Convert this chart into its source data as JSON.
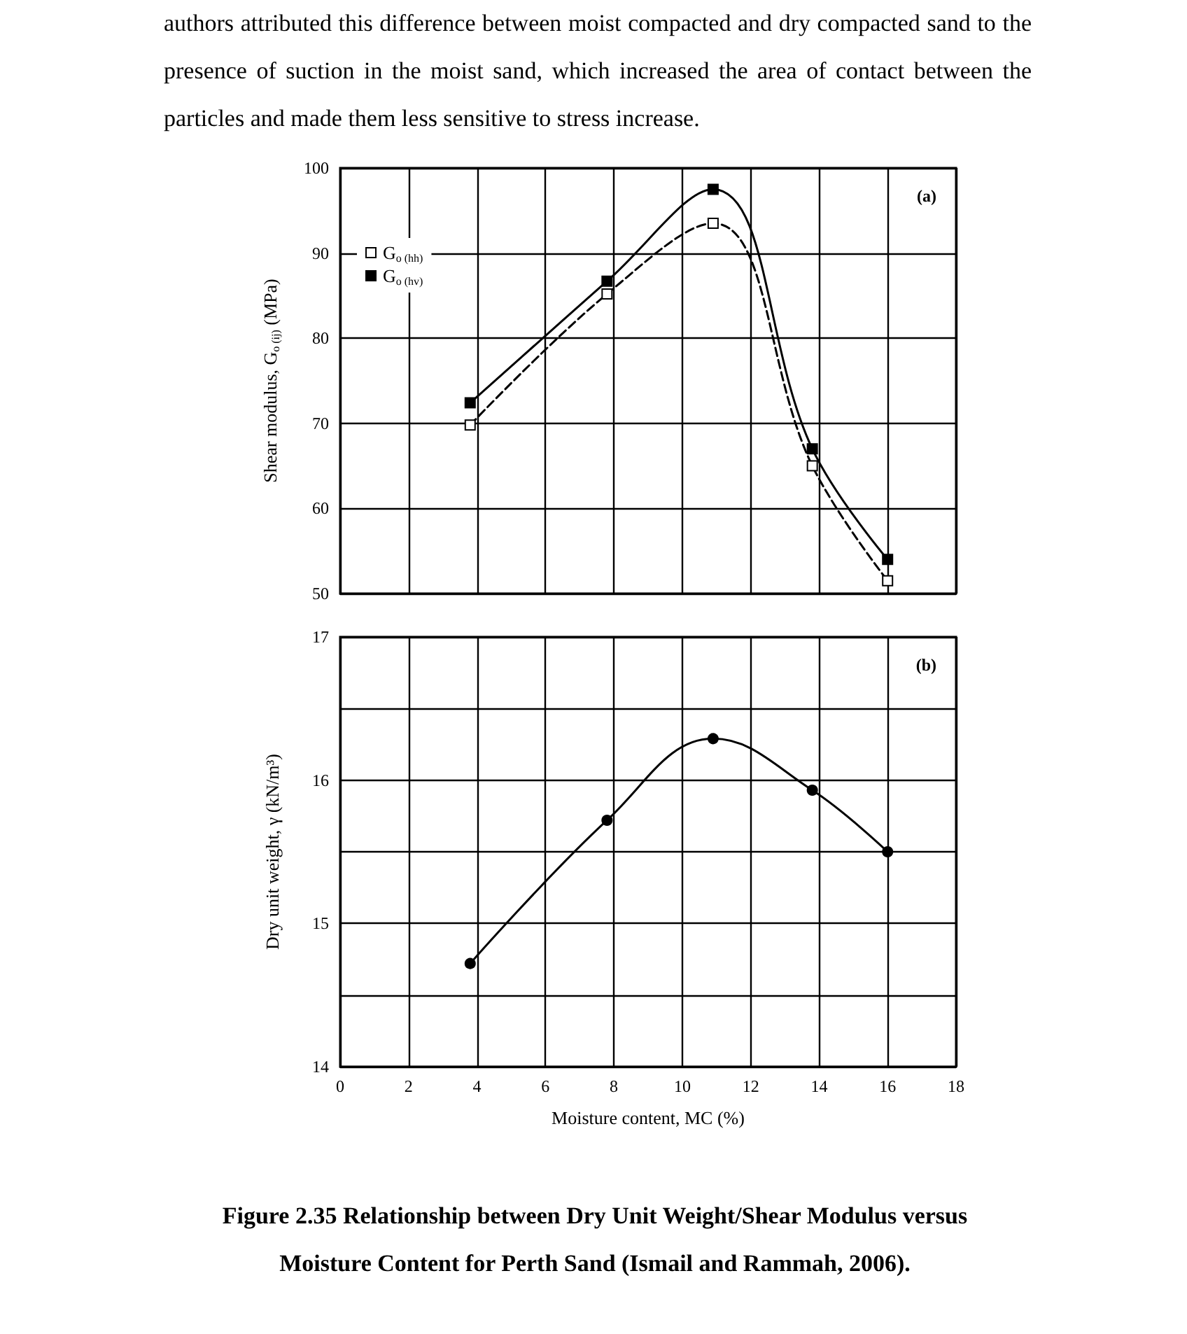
{
  "chart_data": [
    {
      "type": "line",
      "ylabel": "Shear modulus, G$_{o (ij)}$ (MPa)",
      "annotations": [
        "(a)",
        "authors attributed this difference between moist compacted and dry compacted sand to the presence of suction in the moist sand, which increased the area of contact between the particles and made them less sensitive to stress increase."
      ],
      "x": [
        3.8,
        7.8,
        10.9,
        13.8,
        16.0
      ],
      "series": [
        {
          "name": "G$_{o (hh)}$",
          "color": "#000000",
          "values": [
            69.8,
            85.2,
            93.5,
            65,
            51.5
          ],
          "line_style": "dashed"
        },
        {
          "name": "G$_{o (hv)}$",
          "color": "#000000",
          "values": [
            72.4,
            86.7,
            97.5,
            67,
            54
          ],
          "line_style": "solid"
        }
      ],
      "xlim": [
        0,
        18
      ],
      "xticks": [
        0,
        2,
        4,
        6,
        8,
        10,
        12,
        14,
        16,
        18
      ],
      "ylim": [
        50,
        100
      ],
      "yticks": [
        50,
        60,
        70,
        80,
        90,
        100
      ],
      "tick_labels": "y",
      "grid": true,
      "legend": "top left",
      "marker": "square"
    },
    {
      "type": "line",
      "title": "Figure 2.35 Relationship between Dry Unit Weight/Shear Modulus versus Moisture Content for Perth Sand (Ismail and Rammah, 2006).",
      "xlabel": "Moisture content, MC (%)",
      "ylabel": "Dry unit weight, γ (kN/m³)",
      "annotations": [
        "(b)"
      ],
      "x": [
        3.8,
        7.8,
        10.9,
        13.8,
        16.0
      ],
      "series": [
        {
          "color": "#000000",
          "values": [
            14.72,
            15.72,
            16.29,
            15.93,
            15.5
          ],
          "line_style": "solid"
        }
      ],
      "xlim": [
        0,
        18
      ],
      "xticks": [
        0,
        2,
        4,
        6,
        8,
        10,
        12,
        14,
        16,
        18
      ],
      "ylim": [
        14,
        17
      ],
      "yticks": [
        14,
        {
          "value": 14.5,
          "label": null
        },
        15,
        {
          "value": 15.5,
          "label": null
        },
        16,
        {
          "value": 16.5,
          "label": null
        },
        17
      ],
      "grid": true,
      "legend": false,
      "marker": "circle"
    }
  ]
}
